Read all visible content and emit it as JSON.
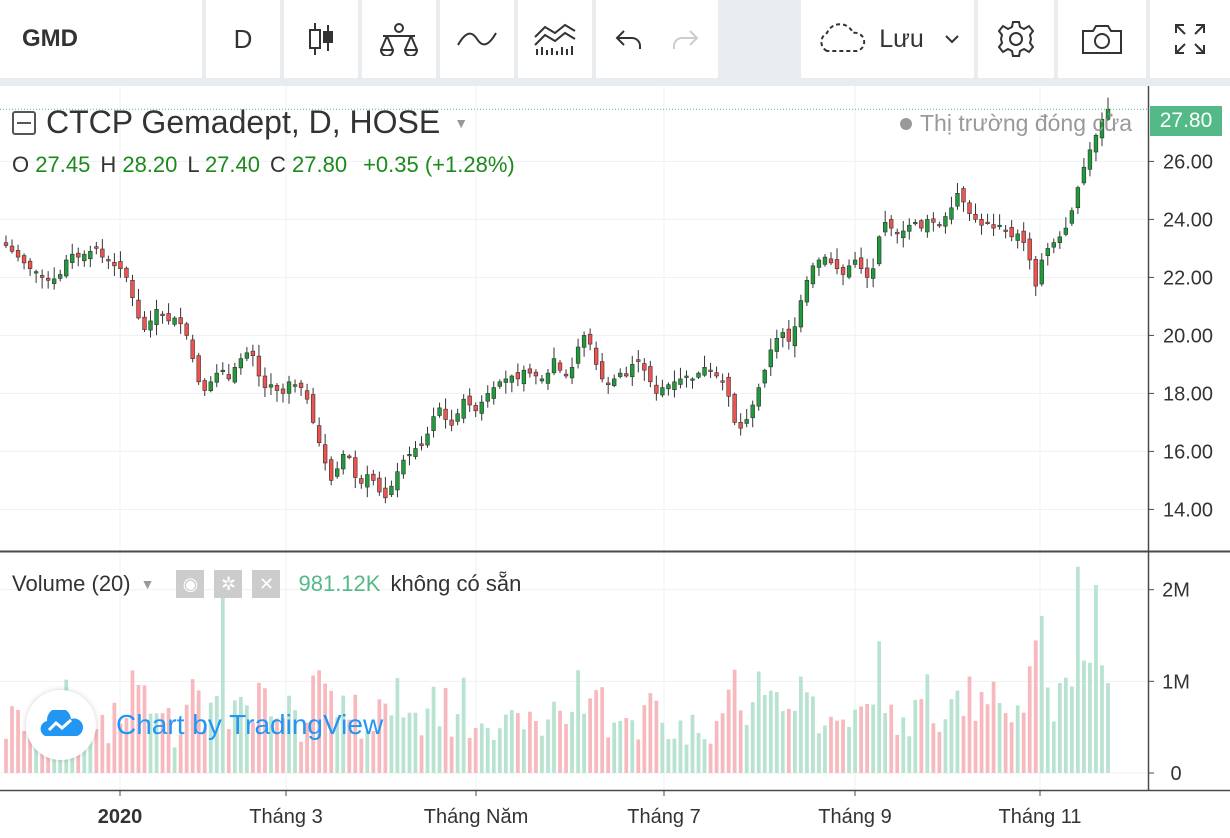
{
  "toolbar": {
    "symbol": "GMD",
    "interval": "D",
    "save_label": "Lưu"
  },
  "legend": {
    "title": "CTCP Gemadept, D, HOSE",
    "open_label": "O",
    "open": "27.45",
    "high_label": "H",
    "high": "28.20",
    "low_label": "L",
    "low": "27.40",
    "close_label": "C",
    "close": "27.80",
    "change": "+0.35 (+1.28%)",
    "market_status": "Thị trường đóng cửa",
    "last_price": "27.80"
  },
  "volume_legend": {
    "label": "Volume (20)",
    "value": "981.12K",
    "ma": "không có sẵn"
  },
  "watermark": "Chart by TradingView",
  "colors": {
    "up": "#26a69a",
    "up_candle": "#1f9c3a",
    "down": "#ef5350",
    "up_volume": "#b7e3d0",
    "down_volume": "#f7b9bd",
    "accent": "#53b987",
    "watermark": "#2196f3"
  },
  "chart_data": {
    "type": "candlestick",
    "price_axis": {
      "ticks": [
        14,
        16,
        18,
        20,
        22,
        24,
        26
      ],
      "labels": [
        "14.00",
        "16.00",
        "18.00",
        "20.00",
        "22.00",
        "24.00",
        "26.00"
      ],
      "ylim": [
        12.6,
        28.6
      ]
    },
    "volume_axis": {
      "ticks": [
        0,
        1000000,
        2000000
      ],
      "labels": [
        "0",
        "1M",
        "2M"
      ],
      "ylim": [
        0,
        2400000
      ]
    },
    "time_axis": [
      "2020",
      "Tháng 3",
      "Tháng Năm",
      "Tháng 7",
      "Tháng 9",
      "Tháng 11"
    ],
    "close_path": [
      23.1,
      22.9,
      22.7,
      22.5,
      22.3,
      22.2,
      22.0,
      21.9,
      21.95,
      22.1,
      22.6,
      22.8,
      22.7,
      22.8,
      22.9,
      23.0,
      22.7,
      22.6,
      22.4,
      22.3,
      22.0,
      21.3,
      20.6,
      20.2,
      20.5,
      20.9,
      20.7,
      20.5,
      20.6,
      20.4,
      20.0,
      19.2,
      18.4,
      18.1,
      18.4,
      18.7,
      18.8,
      18.5,
      18.9,
      19.2,
      19.4,
      19.3,
      18.6,
      18.2,
      18.3,
      18.1,
      18.0,
      18.4,
      18.3,
      18.2,
      17.8,
      17.0,
      16.3,
      15.6,
      15.0,
      15.4,
      15.9,
      15.8,
      15.1,
      14.9,
      15.2,
      15.0,
      14.6,
      14.4,
      14.8,
      15.3,
      15.7,
      15.9,
      16.1,
      16.2,
      16.6,
      17.2,
      17.5,
      17.1,
      16.9,
      17.3,
      17.8,
      17.6,
      17.4,
      17.7,
      18.0,
      18.2,
      18.4,
      18.5,
      18.6,
      18.5,
      18.8,
      18.7,
      18.6,
      18.5,
      18.7,
      19.2,
      18.8,
      18.6,
      18.9,
      19.6,
      20.0,
      19.7,
      19.0,
      18.5,
      18.3,
      18.5,
      18.7,
      18.6,
      19.0,
      19.1,
      18.8,
      18.4,
      18.0,
      18.2,
      18.3,
      18.4,
      18.5,
      18.6,
      18.5,
      18.7,
      18.9,
      18.8,
      18.6,
      18.4,
      17.9,
      17.0,
      16.8,
      17.1,
      17.6,
      18.2,
      18.8,
      19.5,
      19.9,
      20.1,
      19.8,
      20.3,
      21.2,
      21.9,
      22.4,
      22.6,
      22.7,
      22.5,
      22.3,
      22.1,
      22.4,
      22.6,
      22.3,
      22.0,
      22.3,
      23.4,
      23.9,
      23.7,
      23.5,
      23.6,
      23.8,
      23.9,
      23.7,
      24.0,
      23.9,
      23.8,
      24.1,
      24.4,
      24.9,
      24.6,
      24.2,
      24.0,
      23.8,
      23.9,
      23.7,
      23.8,
      23.6,
      23.4,
      23.5,
      23.2,
      22.6,
      21.7,
      22.6,
      23.0,
      23.2,
      23.4,
      23.7,
      24.3,
      25.1,
      25.8,
      26.4,
      26.9,
      27.45,
      27.8
    ]
  }
}
